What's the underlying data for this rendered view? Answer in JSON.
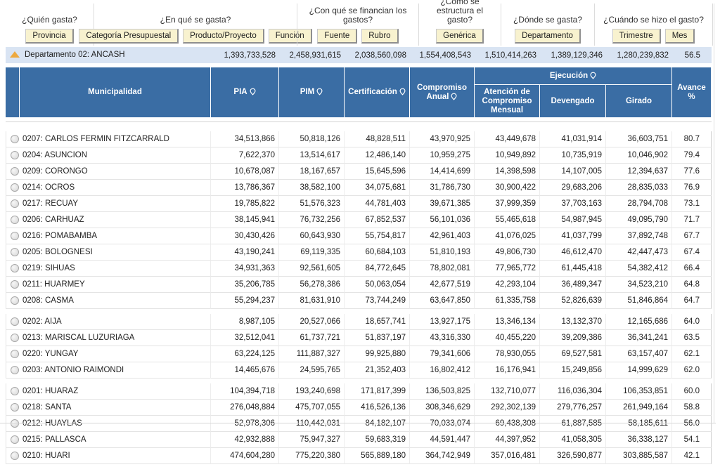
{
  "filters": {
    "groups": [
      {
        "question": "¿Quién gasta?",
        "buttons": [
          "Provincia"
        ]
      },
      {
        "question": "¿En qué se gasta?",
        "buttons": [
          "Categoría Presupuestal",
          "Producto/Proyecto",
          "Función"
        ]
      },
      {
        "question": "¿Con qué se financian los gastos?",
        "buttons": [
          "Fuente",
          "Rubro"
        ]
      },
      {
        "question": "¿Cómo se estructura el gasto?",
        "buttons": [
          "Genérica"
        ]
      },
      {
        "question": "¿Dónde se gasta?",
        "buttons": [
          "Departamento"
        ]
      },
      {
        "question": "¿Cuándo se hizo el gasto?",
        "buttons": [
          "Trimestre",
          "Mes"
        ]
      }
    ]
  },
  "summary": {
    "label": "Departamento 02: ANCASH",
    "values": [
      "1,393,733,528",
      "2,458,931,615",
      "2,038,560,098",
      "1,554,408,543",
      "1,510,414,263",
      "1,389,129,346",
      "1,280,239,832"
    ],
    "avance": "56.5"
  },
  "table": {
    "header": {
      "municipalidad": "Municipalidad",
      "pia": "PIA",
      "pim": "PIM",
      "certificacion": "Certificación",
      "compromiso_anual": "Compromiso Anual",
      "ejecucion": "Ejecución",
      "atencion": "Atención de Compromiso Mensual",
      "devengado": "Devengado",
      "girado": "Girado",
      "avance": "Avance %"
    },
    "rows": [
      [
        "0207: CARLOS FERMIN FITZCARRALD",
        "34,513,866",
        "50,818,126",
        "48,828,511",
        "43,970,925",
        "43,449,678",
        "41,031,914",
        "36,603,751",
        "80.7"
      ],
      [
        "0204: ASUNCION",
        "7,622,370",
        "13,514,617",
        "12,486,140",
        "10,959,275",
        "10,949,892",
        "10,735,919",
        "10,046,902",
        "79.4"
      ],
      [
        "0209: CORONGO",
        "10,678,087",
        "18,167,657",
        "15,645,596",
        "14,414,699",
        "14,398,598",
        "14,107,005",
        "12,394,637",
        "77.6"
      ],
      [
        "0214: OCROS",
        "13,786,367",
        "38,582,100",
        "34,075,681",
        "31,786,730",
        "30,900,422",
        "29,683,206",
        "28,835,033",
        "76.9"
      ],
      [
        "0217: RECUAY",
        "19,785,822",
        "51,576,323",
        "44,781,403",
        "39,671,385",
        "37,999,359",
        "37,703,163",
        "28,794,708",
        "73.1"
      ],
      [
        "0206: CARHUAZ",
        "38,145,941",
        "76,732,256",
        "67,852,537",
        "56,101,036",
        "55,465,618",
        "54,987,945",
        "49,095,790",
        "71.7"
      ],
      [
        "0216: POMABAMBA",
        "30,430,426",
        "60,643,930",
        "55,754,817",
        "42,961,403",
        "41,076,025",
        "41,037,799",
        "37,892,748",
        "67.7"
      ],
      [
        "0205: BOLOGNESI",
        "43,190,241",
        "69,119,335",
        "60,684,103",
        "51,810,193",
        "49,806,730",
        "46,612,470",
        "42,447,473",
        "67.4"
      ],
      [
        "0219: SIHUAS",
        "34,931,363",
        "92,561,605",
        "84,772,645",
        "78,802,081",
        "77,965,772",
        "61,445,418",
        "54,382,412",
        "66.4"
      ],
      [
        "0211: HUARMEY",
        "35,206,785",
        "56,278,386",
        "50,063,054",
        "42,677,519",
        "42,293,104",
        "36,489,347",
        "34,523,210",
        "64.8"
      ],
      [
        "0208: CASMA",
        "55,294,237",
        "81,631,910",
        "73,744,249",
        "63,647,850",
        "61,335,758",
        "52,826,639",
        "51,846,864",
        "64.7"
      ],
      [
        "0202: AIJA",
        "8,987,105",
        "20,527,066",
        "18,657,741",
        "13,927,175",
        "13,346,134",
        "13,132,370",
        "12,165,686",
        "64.0"
      ],
      [
        "0213: MARISCAL LUZURIAGA",
        "32,512,041",
        "61,737,721",
        "51,837,197",
        "43,316,330",
        "40,455,220",
        "39,209,386",
        "36,341,241",
        "63.5"
      ],
      [
        "0220: YUNGAY",
        "63,224,125",
        "111,887,327",
        "99,925,880",
        "79,341,606",
        "78,930,055",
        "69,527,581",
        "63,157,407",
        "62.1"
      ],
      [
        "0203: ANTONIO RAIMONDI",
        "14,465,676",
        "24,595,765",
        "21,352,403",
        "16,802,412",
        "16,176,941",
        "15,249,856",
        "14,999,629",
        "62.0"
      ],
      [
        "0201: HUARAZ",
        "104,394,718",
        "193,240,698",
        "171,817,399",
        "136,503,825",
        "132,710,077",
        "116,036,304",
        "106,353,851",
        "60.0"
      ],
      [
        "0218: SANTA",
        "276,048,884",
        "475,707,055",
        "416,526,136",
        "308,346,629",
        "292,302,139",
        "279,776,257",
        "261,949,164",
        "58.8"
      ],
      [
        "0212: HUAYLAS",
        "52,978,306",
        "110,442,031",
        "84,182,107",
        "70,033,074",
        "69,438,308",
        "61,887,585",
        "58,185,611",
        "56.0"
      ],
      [
        "0215: PALLASCA",
        "42,932,888",
        "75,947,327",
        "59,683,319",
        "44,591,447",
        "44,397,952",
        "41,058,305",
        "36,338,127",
        "54.1"
      ],
      [
        "0210: HUARI",
        "474,604,280",
        "775,220,380",
        "565,889,180",
        "364,742,949",
        "357,016,481",
        "326,590,877",
        "303,885,587",
        "42.1"
      ]
    ]
  },
  "icons": {
    "sort_pin": "white teardrop-pin outline",
    "summary_marker": "orange triangle-up"
  },
  "colors": {
    "header_blue": "#3a6da4",
    "summary_bg": "#d9e4f3",
    "button_bg": "#f8f2cf",
    "accent_triangle": "#eda93f"
  }
}
